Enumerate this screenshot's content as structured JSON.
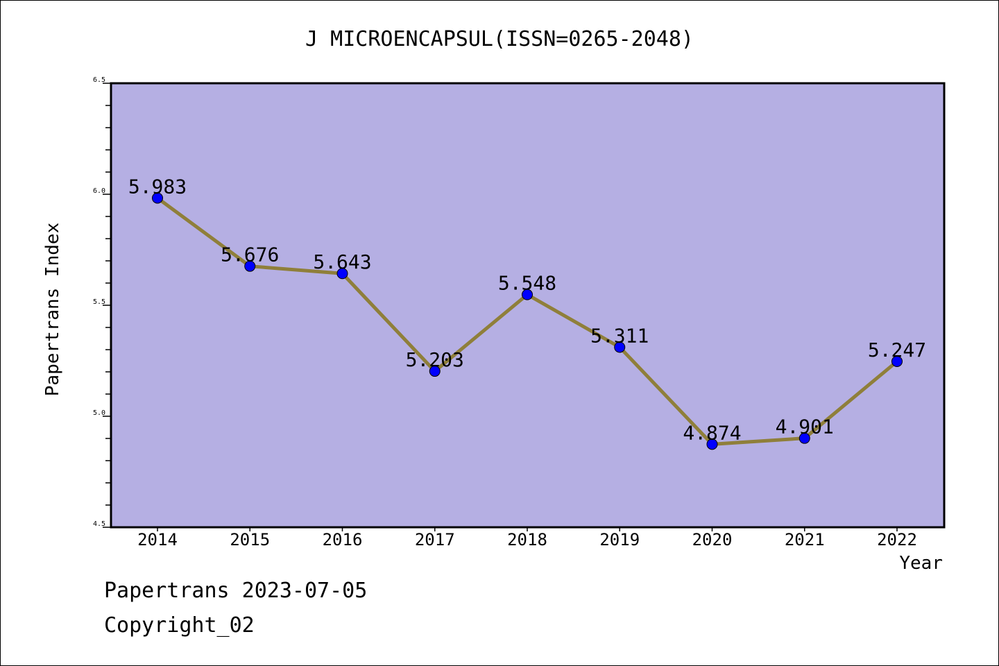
{
  "chart_data": {
    "type": "line",
    "title": "J MICROENCAPSUL(ISSN=0265-2048)",
    "xlabel": "Year",
    "ylabel": "Papertrans Index",
    "x": [
      "2014",
      "2015",
      "2016",
      "2017",
      "2018",
      "2019",
      "2020",
      "2021",
      "2022"
    ],
    "series": [
      {
        "values": [
          5.983,
          5.676,
          5.643,
          5.203,
          5.548,
          5.311,
          4.874,
          4.901,
          5.247
        ],
        "data_labels": [
          "5.983",
          "5.676",
          "5.643",
          "5.203",
          "5.548",
          "5.311",
          "4.874",
          "4.901",
          "5.247"
        ]
      }
    ],
    "ylim": [
      4.5,
      6.5
    ],
    "y_ticks": [
      "4.5",
      "5.0",
      "5.5",
      "6.0",
      "6.5"
    ],
    "grid": false,
    "colors": {
      "plot_background": "#b5afe3",
      "line": "#8f7f3a",
      "marker": "#0000ff"
    }
  },
  "footer": {
    "line1": "Papertrans 2023-07-05",
    "line2": "Copyright_02"
  }
}
